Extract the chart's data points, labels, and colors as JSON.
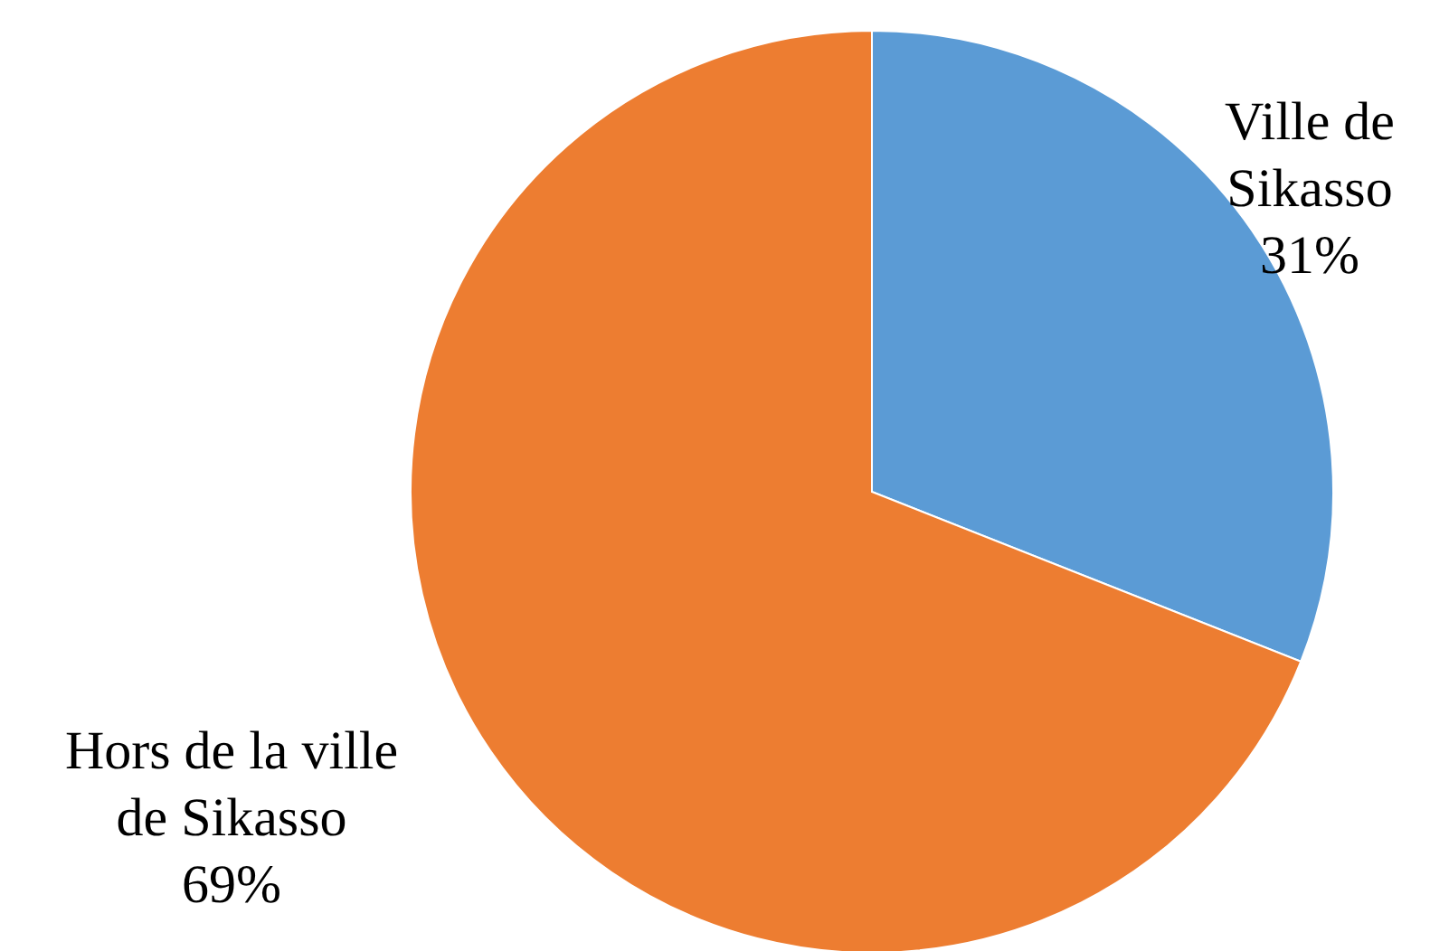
{
  "chart_data": {
    "type": "pie",
    "categories": [
      "Ville de Sikasso",
      "Hors de la ville de Sikasso"
    ],
    "values": [
      31,
      69
    ],
    "colors": [
      "#5b9bd5",
      "#ed7d31"
    ],
    "value_labels": [
      "31%",
      "69%"
    ]
  }
}
